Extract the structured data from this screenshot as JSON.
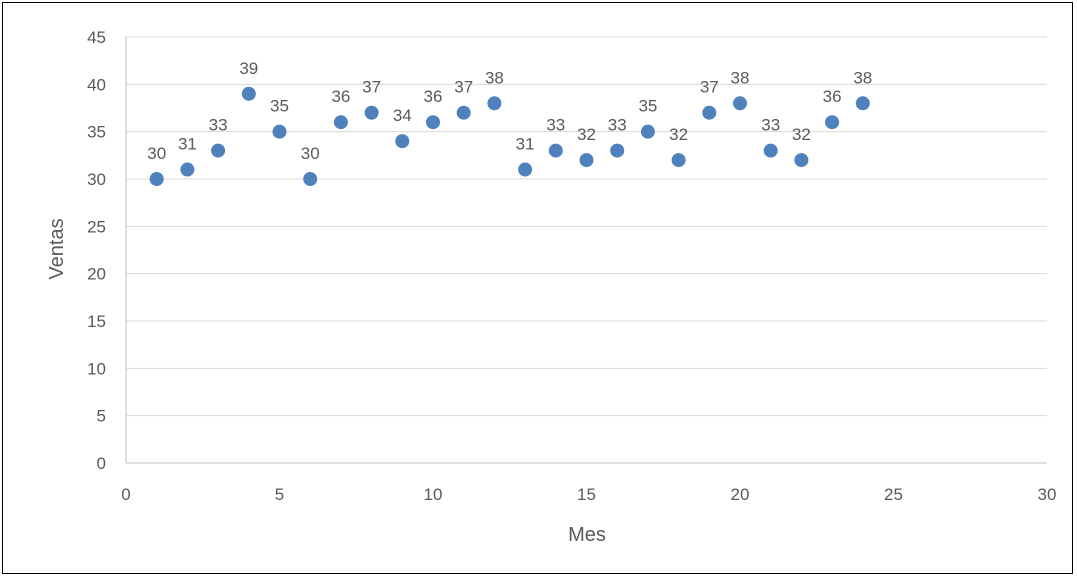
{
  "chart_data": {
    "type": "scatter",
    "title": "",
    "xlabel": "Mes",
    "ylabel": "Ventas",
    "xlim": [
      0,
      30
    ],
    "ylim": [
      0,
      45
    ],
    "xticks": [
      0,
      5,
      10,
      15,
      20,
      25,
      30
    ],
    "yticks": [
      0,
      5,
      10,
      15,
      20,
      25,
      30,
      35,
      40,
      45
    ],
    "grid": true,
    "legend": "none",
    "marker_color": "#4f81bd",
    "data_labels": true,
    "series": [
      {
        "x": [
          1,
          2,
          3,
          4,
          5,
          6,
          7,
          8,
          9,
          10,
          11,
          12,
          13,
          14,
          15,
          16,
          17,
          18,
          19,
          20,
          21,
          22,
          23,
          24
        ],
        "y": [
          30,
          31,
          33,
          39,
          35,
          30,
          36,
          37,
          34,
          36,
          37,
          38,
          31,
          33,
          32,
          33,
          35,
          32,
          37,
          38,
          33,
          32,
          36,
          38
        ]
      }
    ]
  }
}
